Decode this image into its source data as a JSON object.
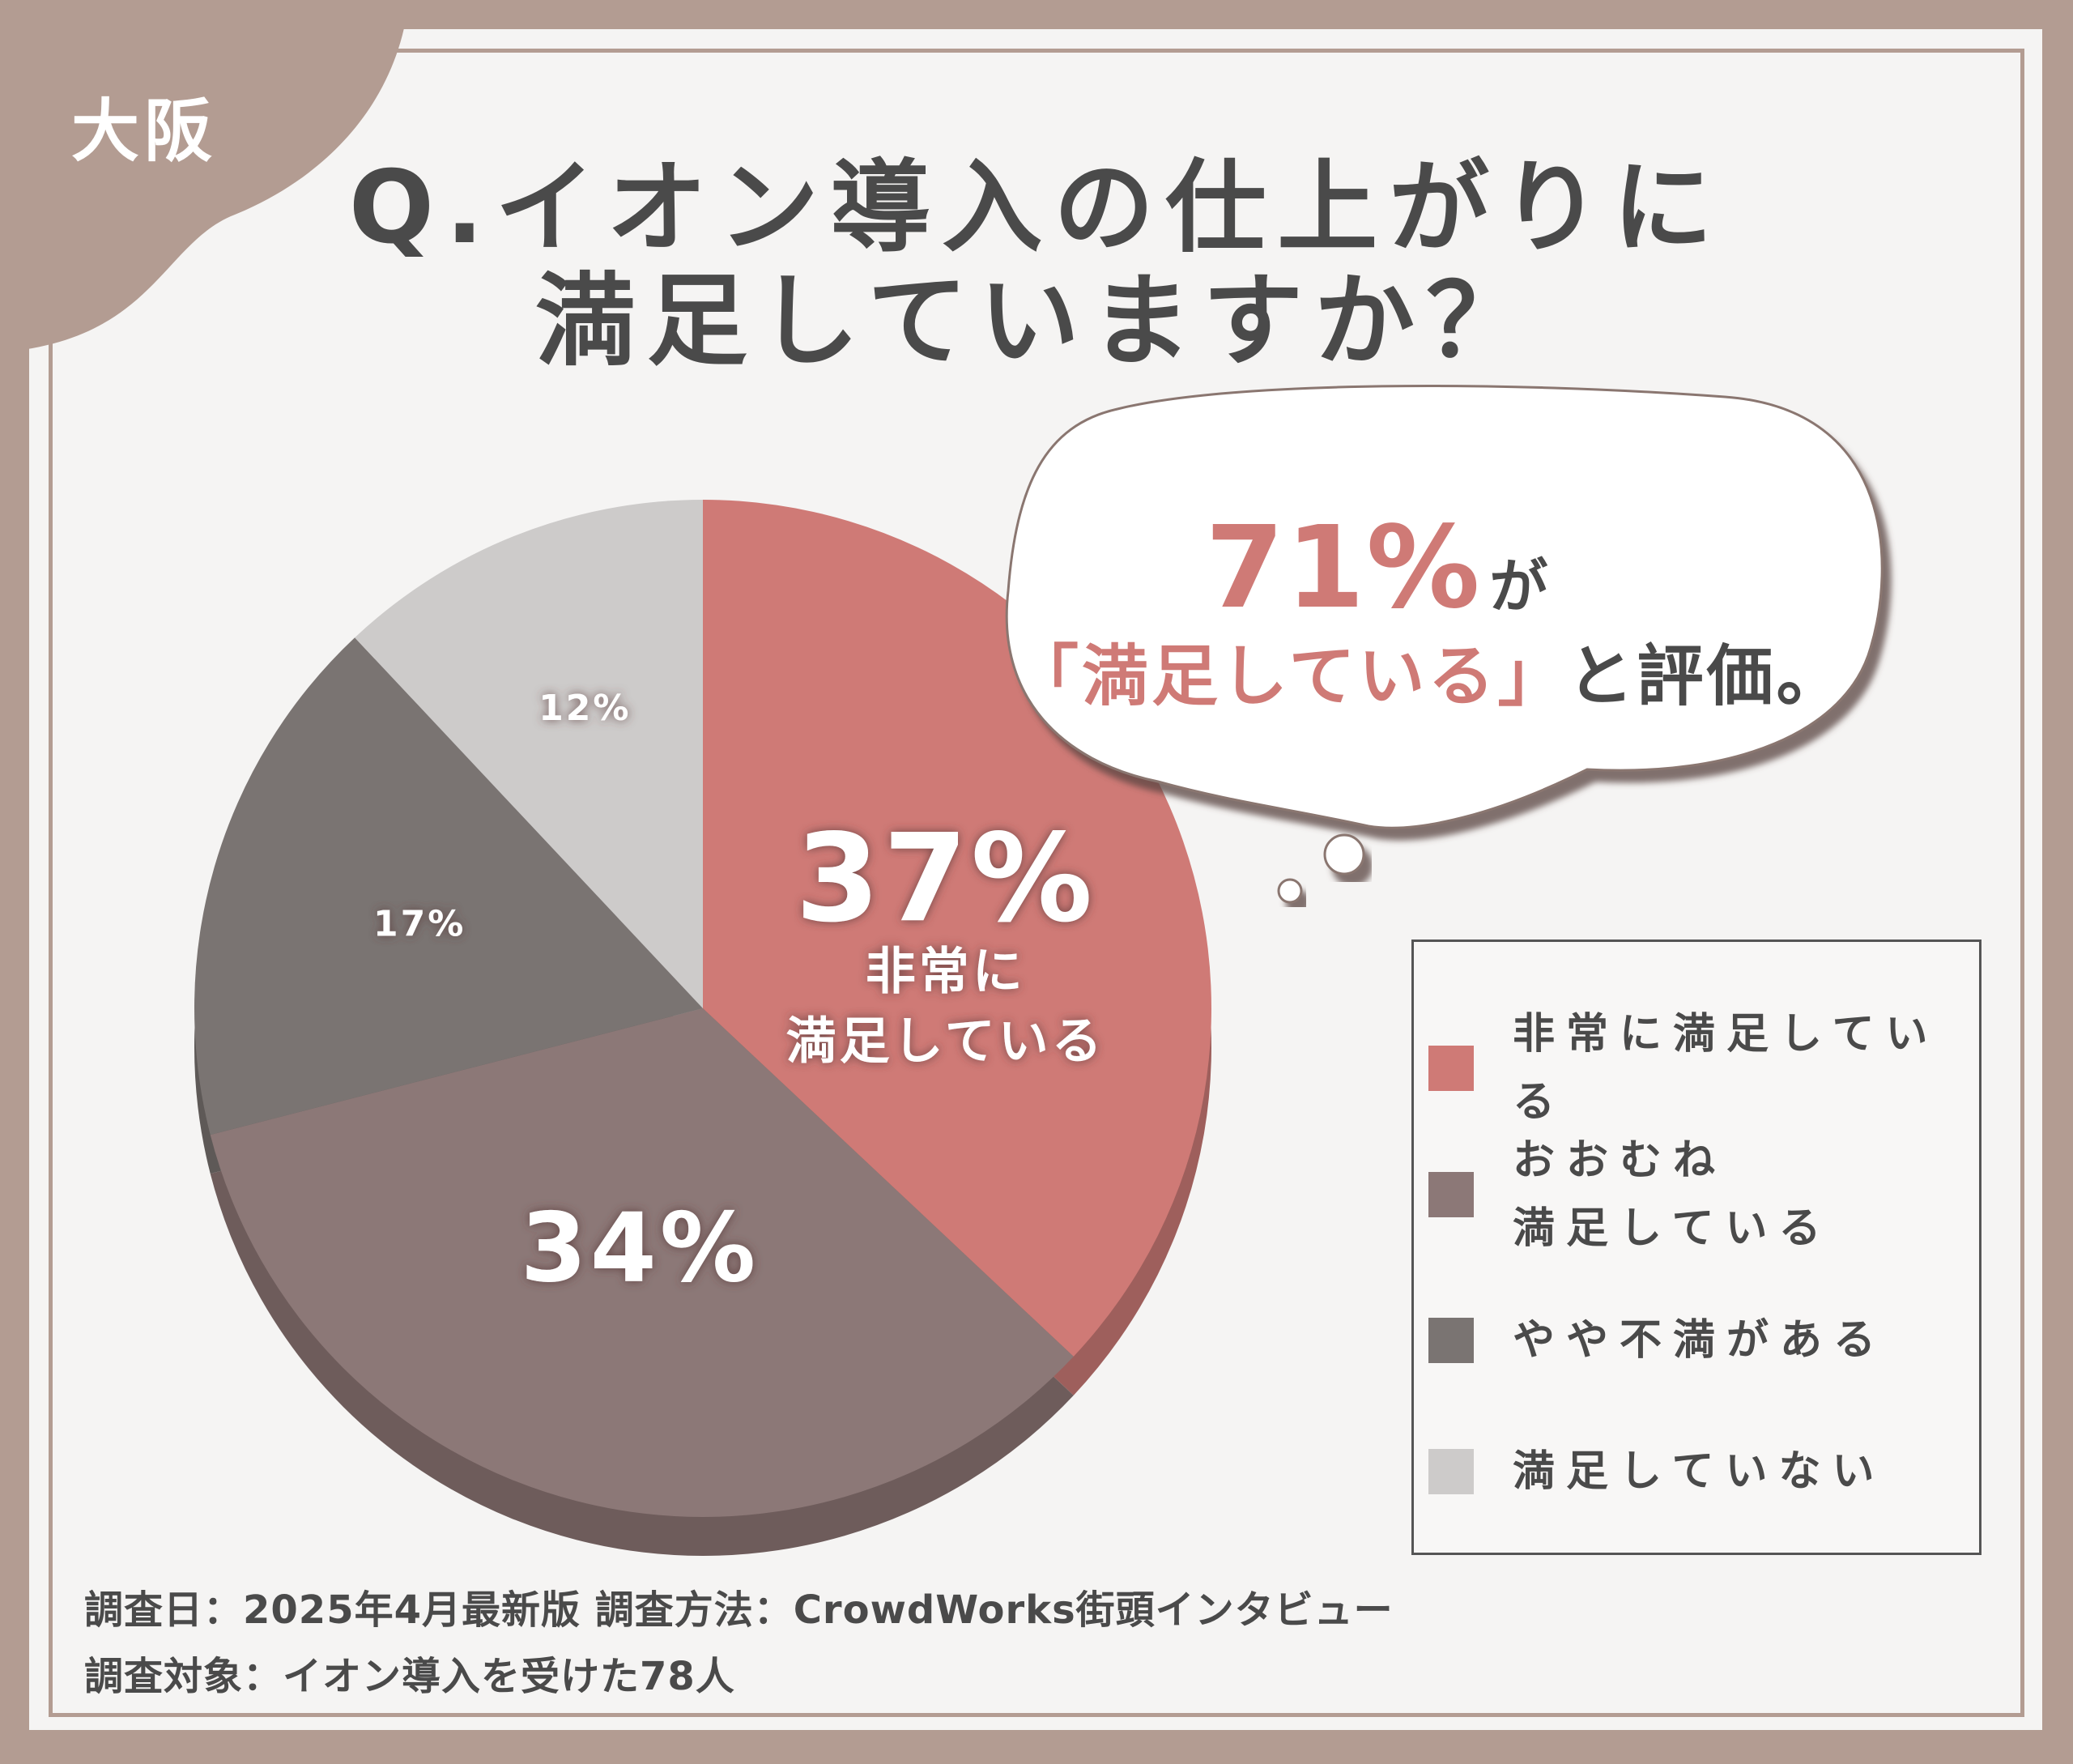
{
  "header": {
    "region_tag": "大阪",
    "title_line1": "Q.イオン導入の仕上がりに",
    "title_line2": "満足していますか？"
  },
  "callout": {
    "percent": "71%",
    "particle": "が",
    "quoted": "「満足している」",
    "rest": "と評価。"
  },
  "legend": {
    "items": [
      {
        "label_line1": "非常に満足している",
        "label_line2": ""
      },
      {
        "label_line1": "おおむね",
        "label_line2": "満足している"
      },
      {
        "label_line1": "やや不満がある",
        "label_line2": ""
      },
      {
        "label_line1": "満足していない",
        "label_line2": ""
      }
    ]
  },
  "footer": {
    "line1": "調査日：2025年4月最新版 調査方法：CrowdWorks街頭インタビュー",
    "line2": "調査対象：イオン導入を受けた78人"
  },
  "chart_data": {
    "type": "pie",
    "categories": [
      "非常に満足している",
      "おおむね満足している",
      "やや不満がある",
      "満足していない"
    ],
    "values": [
      37,
      34,
      17,
      12
    ],
    "data_labels": [
      "37%",
      "34%",
      "17%",
      "12%"
    ],
    "inner_label": "非常に満足している",
    "colors": [
      "#cf7a76",
      "#8c7877",
      "#7a7472",
      "#cdcbca"
    ],
    "shadow_colors": [
      "#9e5f5c",
      "#6e5c5b",
      "#5e5957",
      "#a9a7a6"
    ],
    "start_angle_deg": 0,
    "direction": "clockwise",
    "legend_position": "right"
  }
}
